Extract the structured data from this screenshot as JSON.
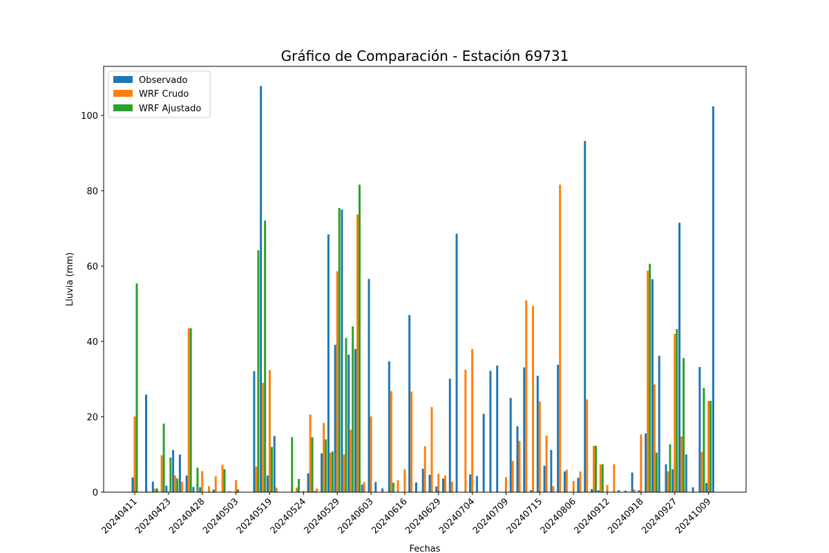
{
  "chart_data": {
    "type": "bar",
    "title": "Gráfico de Comparación - Estación 69731",
    "xlabel": "Fechas",
    "ylabel": "Lluvia (mm)",
    "ylim": [
      0,
      113
    ],
    "yticks": [
      0,
      20,
      40,
      60,
      80,
      100
    ],
    "grid": false,
    "legend_position": "top-left",
    "xtick_labels": [
      "20240411",
      "20240423",
      "20240428",
      "20240503",
      "20240519",
      "20240524",
      "20240529",
      "20240603",
      "20240616",
      "20240629",
      "20240704",
      "20240709",
      "20240715",
      "20240806",
      "20240912",
      "20240918",
      "20240927",
      "20241009"
    ],
    "xtick_every": 5,
    "series": [
      {
        "name": "Observado",
        "color": "#1f77b4",
        "values": [
          3.9,
          0.0,
          25.9,
          2.8,
          0.1,
          1.7,
          11.2,
          10.0,
          4.4,
          1.4,
          1.3,
          0.0,
          0.7,
          0.1,
          0.0,
          0.0,
          0.0,
          0.0,
          32.1,
          107.8,
          4.4,
          14.9,
          0.0,
          0.0,
          0.0,
          0.0,
          5.0,
          0.3,
          10.3,
          68.4,
          39.1,
          75.0,
          36.5,
          38.0,
          2.0,
          56.6,
          2.7,
          1.0,
          34.7,
          0.0,
          0.0,
          47.0,
          2.6,
          6.2,
          4.6,
          1.5,
          3.6,
          30.1,
          68.6,
          0.0,
          4.7,
          4.3,
          20.8,
          32.2,
          33.6,
          0.0,
          25.0,
          17.5,
          33.1,
          0.5,
          30.9,
          7.0,
          11.2,
          33.8,
          5.5,
          0.0,
          3.8,
          93.2,
          0.8,
          0.5,
          0.0,
          0.1,
          0.5,
          0.4,
          5.2,
          0.5,
          15.6,
          56.5,
          36.2,
          7.4,
          6.1,
          71.5,
          10.0,
          1.3,
          33.2,
          2.4,
          102.4
        ]
      },
      {
        "name": "WRF Crudo",
        "color": "#ff7f0e",
        "values": [
          20.1,
          0.1,
          0.2,
          0.9,
          9.8,
          0.0,
          4.4,
          2.8,
          43.5,
          0.0,
          5.6,
          1.6,
          4.2,
          7.3,
          0.3,
          3.2,
          0.0,
          0.0,
          6.8,
          29.0,
          32.4,
          1.2,
          0.0,
          0.0,
          1.2,
          0.4,
          20.6,
          1.0,
          18.4,
          10.5,
          58.6,
          10.0,
          16.6,
          73.7,
          2.7,
          20.1,
          0.0,
          0.0,
          26.8,
          3.2,
          6.1,
          26.7,
          0.0,
          12.2,
          22.6,
          4.9,
          4.4,
          2.8,
          0.0,
          32.5,
          38.0,
          0.0,
          0.0,
          0.0,
          0.0,
          4.0,
          8.3,
          13.6,
          50.9,
          49.4,
          24.1,
          15.0,
          1.6,
          81.6,
          6.0,
          3.0,
          5.5,
          24.6,
          12.3,
          7.4,
          1.9,
          7.4,
          0.0,
          0.0,
          0.8,
          15.3,
          58.8,
          28.6,
          0.0,
          5.5,
          42.0,
          14.8,
          0.0,
          0.0,
          10.7,
          24.2,
          0.0
        ]
      },
      {
        "name": "WRF Ajustado",
        "color": "#2ca02c",
        "values": [
          55.4,
          0.0,
          0.0,
          1.0,
          18.2,
          9.2,
          3.6,
          0.0,
          43.5,
          6.5,
          0.0,
          0.0,
          0.0,
          6.1,
          0.0,
          0.8,
          0.0,
          0.0,
          64.2,
          72.1,
          12.0,
          0.0,
          0.0,
          14.6,
          3.5,
          0.0,
          14.6,
          0.0,
          14.0,
          10.8,
          75.4,
          40.9,
          44.0,
          81.6,
          0.0,
          0.0,
          0.0,
          0.0,
          2.5,
          0.0,
          0.0,
          0.0,
          0.0,
          0.0,
          0.0,
          0.0,
          0.0,
          0.0,
          0.0,
          0.0,
          0.0,
          0.0,
          0.0,
          0.0,
          0.0,
          0.0,
          0.0,
          0.0,
          0.0,
          0.0,
          0.0,
          0.0,
          0.0,
          0.0,
          0.0,
          0.0,
          0.0,
          0.0,
          12.3,
          7.4,
          0.0,
          0.0,
          0.0,
          0.0,
          0.0,
          0.0,
          60.6,
          10.5,
          0.0,
          12.7,
          43.3,
          35.6,
          0.0,
          0.0,
          27.7,
          24.2,
          0.0
        ]
      }
    ]
  }
}
